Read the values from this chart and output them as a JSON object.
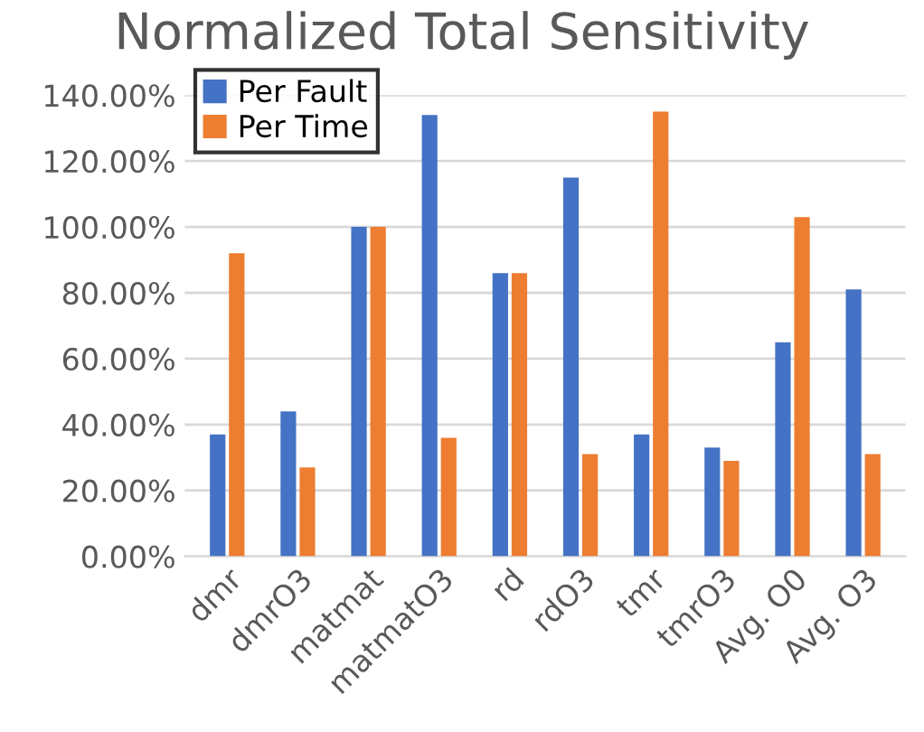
{
  "chart_data": {
    "type": "bar",
    "title": "Normalized Total Sensitivity",
    "categories": [
      "dmr",
      "dmrO3",
      "matmat",
      "matmatO3",
      "rd",
      "rdO3",
      "tmr",
      "tmrO3",
      "Avg. O0",
      "Avg. O3"
    ],
    "series": [
      {
        "name": "Per Fault",
        "color": "#4472c4",
        "values": [
          37,
          44,
          100,
          134,
          86,
          115,
          37,
          33,
          65,
          81
        ]
      },
      {
        "name": "Per Time",
        "color": "#ed7d31",
        "values": [
          92,
          27,
          100,
          36,
          86,
          31,
          135,
          29,
          103,
          31
        ]
      }
    ],
    "ylim": [
      0,
      140
    ],
    "yticks": [
      {
        "value": 0,
        "label": "0.00%"
      },
      {
        "value": 20,
        "label": "20.00%"
      },
      {
        "value": 40,
        "label": "40.00%"
      },
      {
        "value": 60,
        "label": "60.00%"
      },
      {
        "value": 80,
        "label": "80.00%"
      },
      {
        "value": 100,
        "label": "100.00%"
      },
      {
        "value": 120,
        "label": "120.00%"
      },
      {
        "value": 140,
        "label": "140.00%"
      }
    ],
    "grid": "y",
    "legend": "top left"
  }
}
